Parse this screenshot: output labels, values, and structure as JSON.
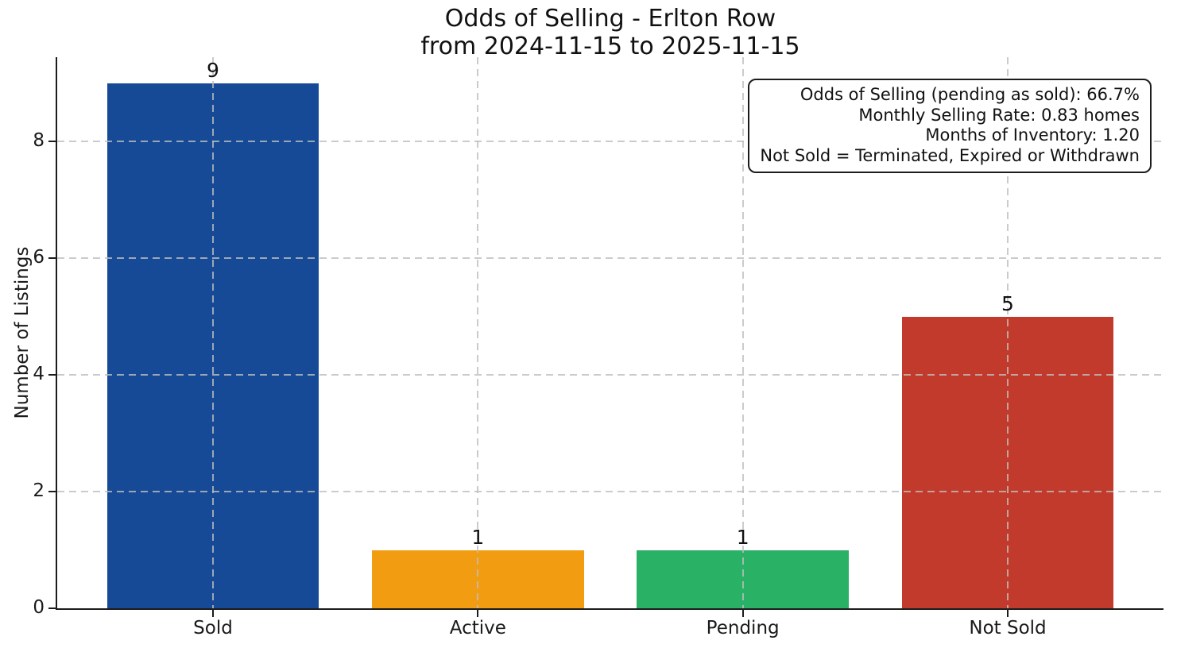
{
  "chart_data": {
    "type": "bar",
    "title_line1": "Odds of Selling - Erlton Row",
    "title_line2": "from 2024-11-15 to 2025-11-15",
    "categories": [
      "Sold",
      "Active",
      "Pending",
      "Not Sold"
    ],
    "values": [
      9,
      1,
      1,
      5
    ],
    "value_labels": [
      "9",
      "1",
      "1",
      "5"
    ],
    "bar_colors": [
      "#164a96",
      "#f29d11",
      "#29b165",
      "#c23a2b"
    ],
    "xlabel": "",
    "ylabel": "Number of Listings",
    "yticks": [
      0,
      2,
      4,
      6,
      8
    ],
    "ylim": [
      0,
      9.45
    ],
    "xlim": [
      -0.588,
      3.588
    ],
    "bar_width": 0.8,
    "grid": "dashed gray, both axes, drawn above bars",
    "legend": "none"
  },
  "annotation": {
    "lines": [
      "Odds of Selling (pending as sold): 66.7%",
      "Monthly Selling Rate: 0.83 homes",
      "Months of Inventory: 1.20",
      "Not Sold = Terminated, Expired or Withdrawn"
    ]
  }
}
